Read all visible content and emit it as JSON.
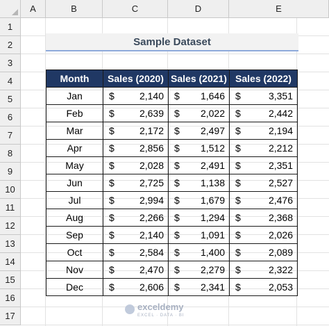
{
  "columns": [
    "A",
    "B",
    "C",
    "D",
    "E"
  ],
  "rows": [
    "1",
    "2",
    "3",
    "4",
    "5",
    "6",
    "7",
    "8",
    "9",
    "10",
    "11",
    "12",
    "13",
    "14",
    "15",
    "16",
    "17"
  ],
  "title": "Sample Dataset",
  "table": {
    "headers": [
      "Month",
      "Sales (2020)",
      "Sales (2021)",
      "Sales (2022)"
    ],
    "currency": "$",
    "data": [
      {
        "month": "Jan",
        "v2020": "2,140",
        "v2021": "1,646",
        "v2022": "3,351"
      },
      {
        "month": "Feb",
        "v2020": "2,639",
        "v2021": "2,022",
        "v2022": "2,442"
      },
      {
        "month": "Mar",
        "v2020": "2,172",
        "v2021": "2,497",
        "v2022": "2,194"
      },
      {
        "month": "Apr",
        "v2020": "2,856",
        "v2021": "1,512",
        "v2022": "2,212"
      },
      {
        "month": "May",
        "v2020": "2,028",
        "v2021": "2,491",
        "v2022": "2,351"
      },
      {
        "month": "Jun",
        "v2020": "2,725",
        "v2021": "1,138",
        "v2022": "2,527"
      },
      {
        "month": "Jul",
        "v2020": "2,994",
        "v2021": "1,679",
        "v2022": "2,476"
      },
      {
        "month": "Aug",
        "v2020": "2,266",
        "v2021": "1,294",
        "v2022": "2,368"
      },
      {
        "month": "Sep",
        "v2020": "2,140",
        "v2021": "1,091",
        "v2022": "2,026"
      },
      {
        "month": "Oct",
        "v2020": "2,584",
        "v2021": "1,400",
        "v2022": "2,089"
      },
      {
        "month": "Nov",
        "v2020": "2,470",
        "v2021": "2,279",
        "v2022": "2,322"
      },
      {
        "month": "Dec",
        "v2020": "2,606",
        "v2021": "2,341",
        "v2022": "2,053"
      }
    ]
  },
  "watermark": {
    "name": "exceldemy",
    "sub": "EXCEL · DATA · BI",
    "icon": "exceldemy-logo-icon"
  },
  "colors": {
    "header_fill": "#203864",
    "title_fill": "#f2f2f2",
    "title_underline": "#8eaadb"
  }
}
